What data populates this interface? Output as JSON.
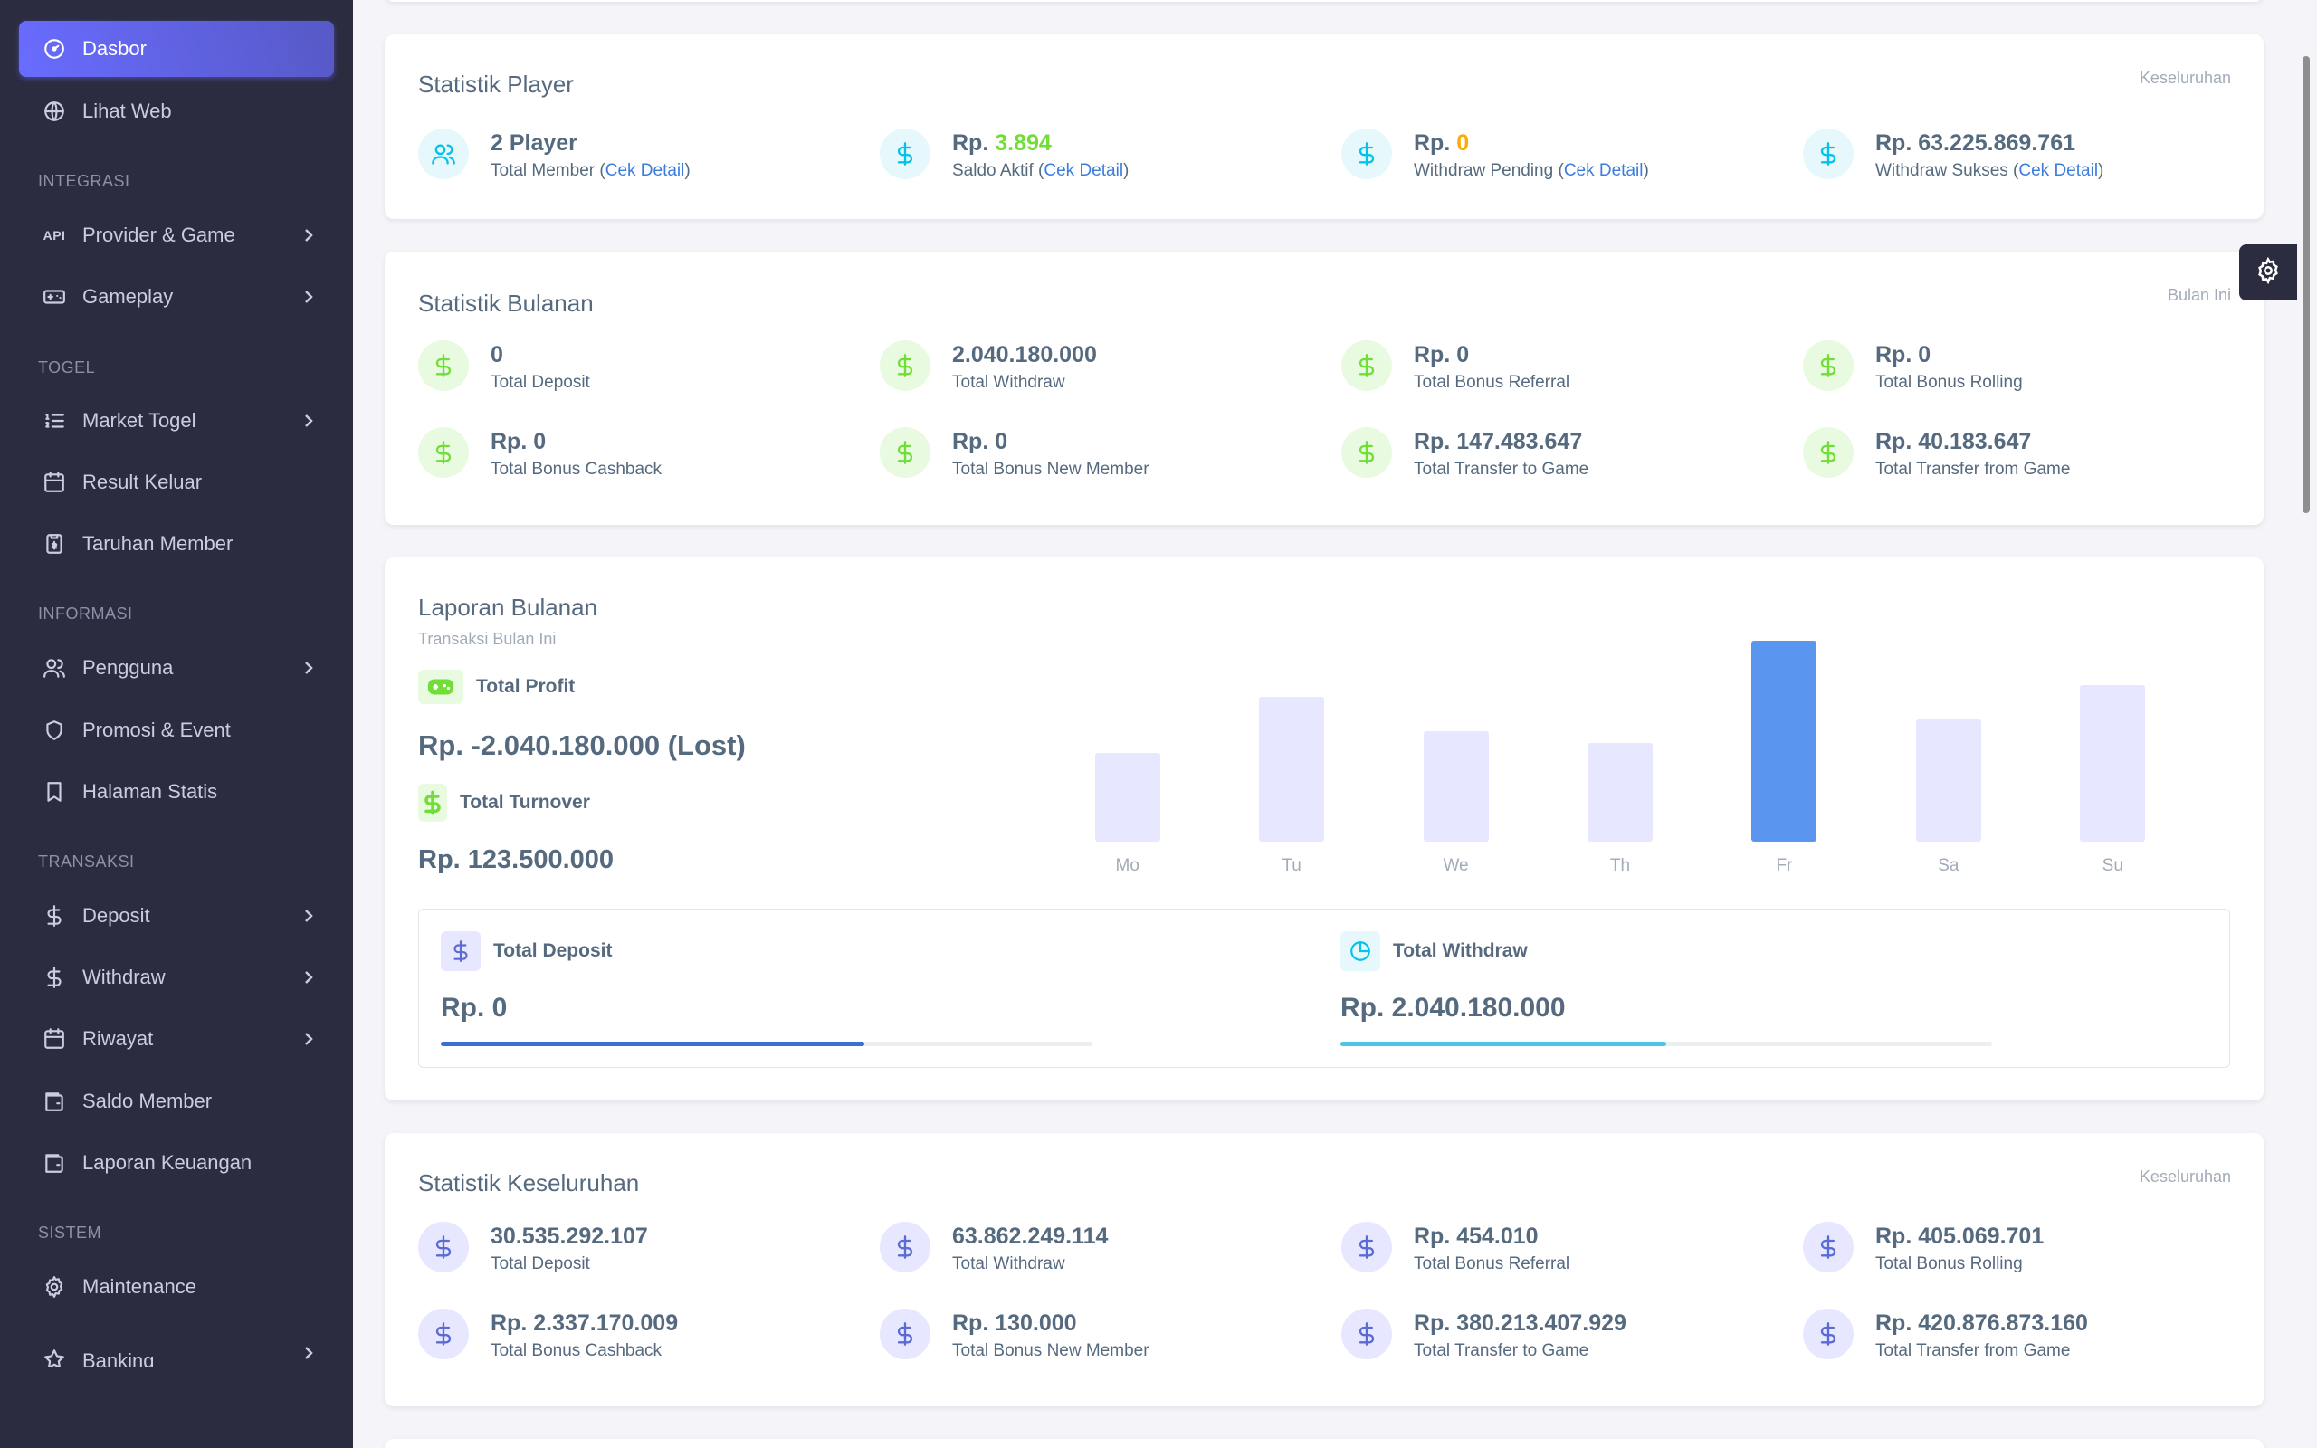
{
  "sidebar": {
    "items": {
      "dasbor": "Dasbor",
      "lihat_web": "Lihat Web",
      "provider_game": "Provider & Game",
      "gameplay": "Gameplay",
      "market_togel": "Market Togel",
      "result_keluar": "Result Keluar",
      "taruhan_member": "Taruhan Member",
      "pengguna": "Pengguna",
      "promosi_event": "Promosi & Event",
      "halaman_statis": "Halaman Statis",
      "deposit": "Deposit",
      "withdraw": "Withdraw",
      "riwayat": "Riwayat",
      "saldo_member": "Saldo Member",
      "laporan_keuangan": "Laporan Keuangan",
      "maintenance": "Maintenance",
      "banking": "Banking"
    },
    "headers": {
      "integrasi": "INTEGRASI",
      "togel": "TOGEL",
      "informasi": "INFORMASI",
      "transaksi": "TRANSAKSI",
      "sistem": "SISTEM"
    },
    "api_badge": "API"
  },
  "player": {
    "title": "Statistik Player",
    "tag": "Keseluruhan",
    "detail_link": "Cek Detail",
    "total_member_value": "2 Player",
    "total_member_label": "Total Member",
    "saldo_prefix": "Rp.",
    "saldo_value": "3.894",
    "saldo_label": "Saldo Aktif",
    "pending_prefix": "Rp.",
    "pending_value": "0",
    "pending_label": "Withdraw Pending",
    "sukses_value": "Rp. 63.225.869.761",
    "sukses_label": "Withdraw Sukses"
  },
  "bulanan": {
    "title": "Statistik Bulanan",
    "tag": "Bulan Ini",
    "stats": [
      {
        "value": "0",
        "label": "Total Deposit"
      },
      {
        "value": "2.040.180.000",
        "label": "Total Withdraw"
      },
      {
        "value": "Rp. 0",
        "label": "Total Bonus Referral"
      },
      {
        "value": "Rp. 0",
        "label": "Total Bonus Rolling"
      },
      {
        "value": "Rp. 0",
        "label": "Total Bonus Cashback"
      },
      {
        "value": "Rp. 0",
        "label": "Total Bonus New Member"
      },
      {
        "value": "Rp. 147.483.647",
        "label": "Total Transfer to Game"
      },
      {
        "value": "Rp. 40.183.647",
        "label": "Total Transfer from Game"
      }
    ]
  },
  "laporan": {
    "title": "Laporan Bulanan",
    "subtitle": "Transaksi Bulan Ini",
    "profit_label": "Total Profit",
    "profit_value": "Rp. -2.040.180.000 (Lost)",
    "turnover_label": "Total Turnover",
    "turnover_value": "Rp. 123.500.000",
    "deposit_label": "Total Deposit",
    "deposit_value": "Rp. 0",
    "deposit_progress": 0.65,
    "withdraw_label": "Total Withdraw",
    "withdraw_value": "Rp. 2.040.180.000",
    "withdraw_progress": 0.5
  },
  "chart_data": {
    "type": "bar",
    "categories": [
      "Mo",
      "Tu",
      "We",
      "Th",
      "Fr",
      "Sa",
      "Su"
    ],
    "values": [
      44,
      72,
      55,
      49,
      100,
      61,
      78
    ],
    "highlight_index": 4,
    "colors": {
      "normal": "#e7e7ff",
      "highlight": "#5a96f0"
    }
  },
  "keseluruhan": {
    "title": "Statistik Keseluruhan",
    "tag": "Keseluruhan",
    "stats": [
      {
        "value": "30.535.292.107",
        "label": "Total Deposit"
      },
      {
        "value": "63.862.249.114",
        "label": "Total Withdraw"
      },
      {
        "value": "Rp. 454.010",
        "label": "Total Bonus Referral"
      },
      {
        "value": "Rp. 405.069.701",
        "label": "Total Bonus Rolling"
      },
      {
        "value": "Rp. 2.337.170.009",
        "label": "Total Bonus Cashback"
      },
      {
        "value": "Rp. 130.000",
        "label": "Total Bonus New Member"
      },
      {
        "value": "Rp. 380.213.407.929",
        "label": "Total Transfer to Game"
      },
      {
        "value": "Rp. 420.876.873.160",
        "label": "Total Transfer from Game"
      }
    ]
  }
}
